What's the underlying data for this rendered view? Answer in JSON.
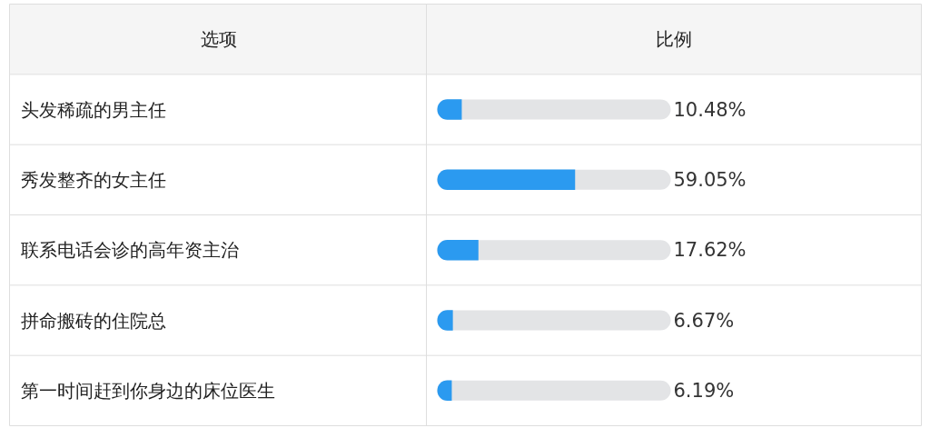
{
  "chart_data": {
    "type": "bar",
    "orientation": "horizontal",
    "ylabel": "选项",
    "annotations": [
      "比例"
    ],
    "categories": [
      "头发稀疏的男主任",
      "秀发整齐的女主任",
      "联系电话会诊的高年资主治",
      "拼命搬砖的住院总",
      "第一时间赶到你身边的床位医生"
    ],
    "values": [
      10.48,
      59.05,
      17.62,
      6.67,
      6.19
    ],
    "value_labels": [
      "10.48%",
      "59.05%",
      "17.62%",
      "6.67%",
      "6.19%"
    ],
    "color": "#2b9af0",
    "tick_labels": "y"
  }
}
